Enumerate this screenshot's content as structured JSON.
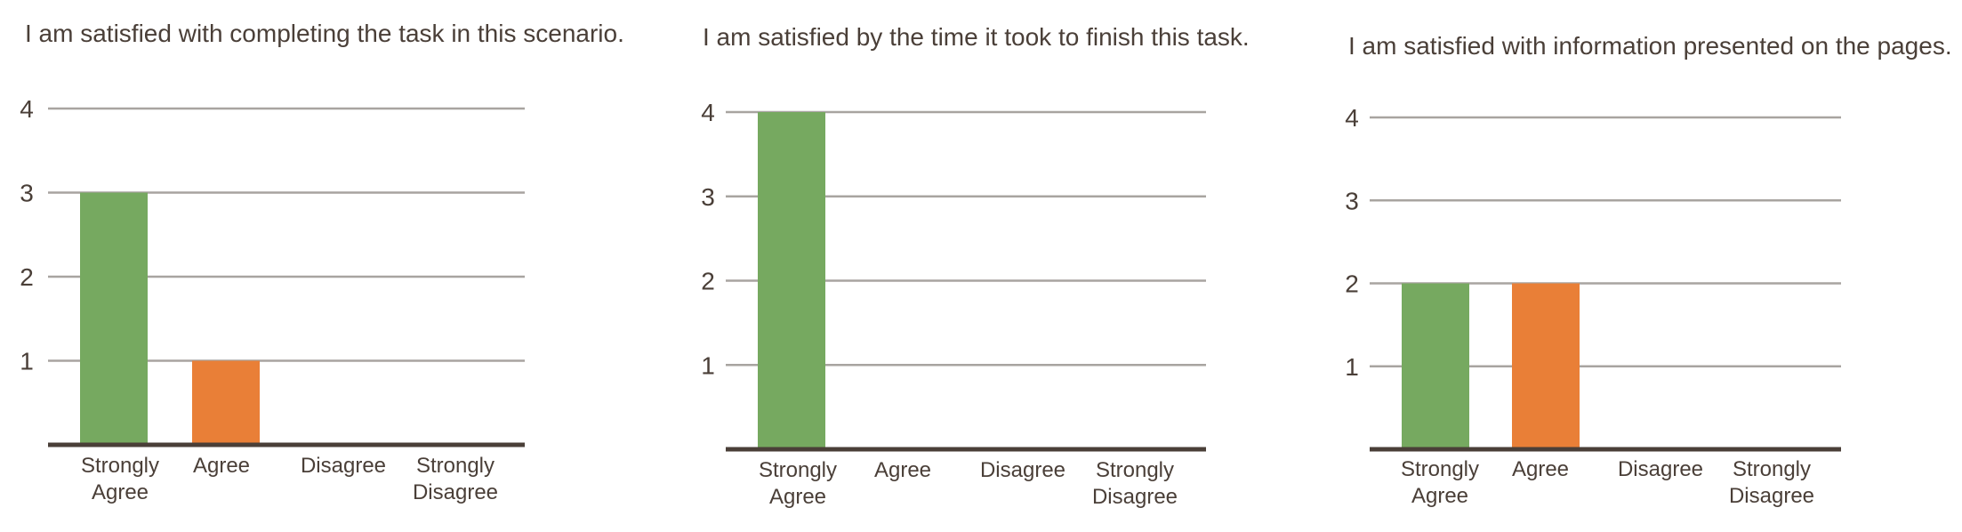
{
  "chart_data": [
    {
      "type": "bar",
      "title": "I am satisfied with completing the task in this scenario.",
      "categories": [
        [
          "Strongly",
          "Agree"
        ],
        [
          "Agree"
        ],
        [
          "Disagree"
        ],
        [
          "Strongly",
          "Disagree"
        ]
      ],
      "values": [
        3,
        1,
        0,
        0
      ],
      "colors": [
        "#76a960",
        "#e97f37",
        "#76a960",
        "#76a960"
      ],
      "ylim": [
        0,
        4
      ],
      "yticks": [
        1,
        2,
        3,
        4
      ],
      "grid": true
    },
    {
      "type": "bar",
      "title": "I am satisfied by the time it took to finish this task.",
      "categories": [
        [
          "Strongly",
          "Agree"
        ],
        [
          "Agree"
        ],
        [
          "Disagree"
        ],
        [
          "Strongly",
          "Disagree"
        ]
      ],
      "values": [
        4,
        0,
        0,
        0
      ],
      "colors": [
        "#76a960",
        "#e97f37",
        "#76a960",
        "#76a960"
      ],
      "ylim": [
        0,
        4
      ],
      "yticks": [
        1,
        2,
        3,
        4
      ],
      "grid": true
    },
    {
      "type": "bar",
      "title": "I am satisfied with information presented on the pages.",
      "categories": [
        [
          "Strongly",
          "Agree"
        ],
        [
          "Agree"
        ],
        [
          "Disagree"
        ],
        [
          "Strongly",
          "Disagree"
        ]
      ],
      "values": [
        2,
        2,
        0,
        0
      ],
      "colors": [
        "#76a960",
        "#e97f37",
        "#76a960",
        "#76a960"
      ],
      "ylim": [
        0,
        4
      ],
      "yticks": [
        1,
        2,
        3,
        4
      ],
      "grid": true
    }
  ]
}
